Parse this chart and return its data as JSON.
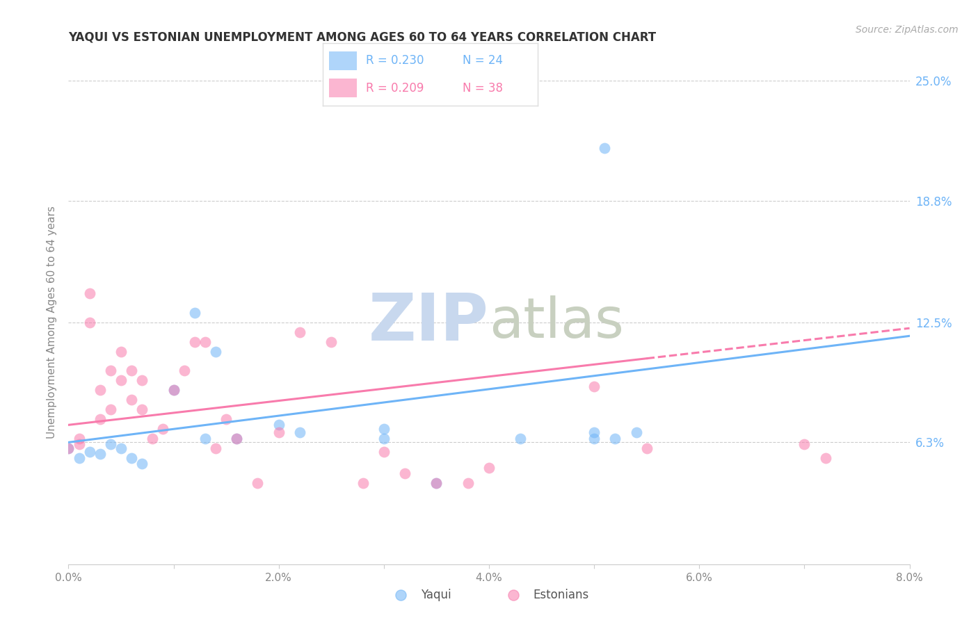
{
  "title": "YAQUI VS ESTONIAN UNEMPLOYMENT AMONG AGES 60 TO 64 YEARS CORRELATION CHART",
  "source": "Source: ZipAtlas.com",
  "ylabel": "Unemployment Among Ages 60 to 64 years",
  "xlim": [
    0.0,
    0.08
  ],
  "ylim": [
    0.0,
    0.25
  ],
  "xtick_positions": [
    0.0,
    0.01,
    0.02,
    0.03,
    0.04,
    0.05,
    0.06,
    0.07,
    0.08
  ],
  "xtick_labels": [
    "0.0%",
    "",
    "2.0%",
    "",
    "4.0%",
    "",
    "6.0%",
    "",
    "8.0%"
  ],
  "ytick_labels_right": [
    "25.0%",
    "18.8%",
    "12.5%",
    "6.3%"
  ],
  "yticks_right": [
    0.25,
    0.188,
    0.125,
    0.063
  ],
  "legend_blue_r": "R = 0.230",
  "legend_blue_n": "N = 24",
  "legend_pink_r": "R = 0.209",
  "legend_pink_n": "N = 38",
  "legend_label_blue": "Yaqui",
  "legend_label_pink": "Estonians",
  "blue_color": "#6EB4F7",
  "pink_color": "#F87BAC",
  "title_color": "#333333",
  "right_axis_color": "#6EB4F7",
  "yaqui_x": [
    0.0,
    0.001,
    0.002,
    0.003,
    0.004,
    0.005,
    0.006,
    0.007,
    0.01,
    0.012,
    0.013,
    0.014,
    0.016,
    0.02,
    0.022,
    0.03,
    0.03,
    0.035,
    0.043,
    0.05,
    0.05,
    0.051,
    0.052,
    0.054
  ],
  "yaqui_y": [
    0.06,
    0.055,
    0.058,
    0.057,
    0.062,
    0.06,
    0.055,
    0.052,
    0.09,
    0.13,
    0.065,
    0.11,
    0.065,
    0.072,
    0.068,
    0.065,
    0.07,
    0.042,
    0.065,
    0.065,
    0.068,
    0.215,
    0.065,
    0.068
  ],
  "estonian_x": [
    0.0,
    0.001,
    0.001,
    0.002,
    0.002,
    0.003,
    0.003,
    0.004,
    0.004,
    0.005,
    0.005,
    0.006,
    0.006,
    0.007,
    0.007,
    0.008,
    0.009,
    0.01,
    0.011,
    0.012,
    0.013,
    0.014,
    0.015,
    0.016,
    0.018,
    0.02,
    0.022,
    0.025,
    0.028,
    0.03,
    0.032,
    0.035,
    0.038,
    0.04,
    0.05,
    0.055,
    0.07,
    0.072
  ],
  "estonian_y": [
    0.06,
    0.062,
    0.065,
    0.125,
    0.14,
    0.075,
    0.09,
    0.08,
    0.1,
    0.095,
    0.11,
    0.085,
    0.1,
    0.08,
    0.095,
    0.065,
    0.07,
    0.09,
    0.1,
    0.115,
    0.115,
    0.06,
    0.075,
    0.065,
    0.042,
    0.068,
    0.12,
    0.115,
    0.042,
    0.058,
    0.047,
    0.042,
    0.042,
    0.05,
    0.092,
    0.06,
    0.062,
    0.055
  ],
  "background_color": "#ffffff",
  "grid_color": "#cccccc",
  "watermark_text": "ZIP",
  "watermark_text2": "atlas",
  "watermark_color_zip": "#c8d8ee",
  "watermark_color_atlas": "#c8d0c0",
  "watermark_fontsize": 68
}
